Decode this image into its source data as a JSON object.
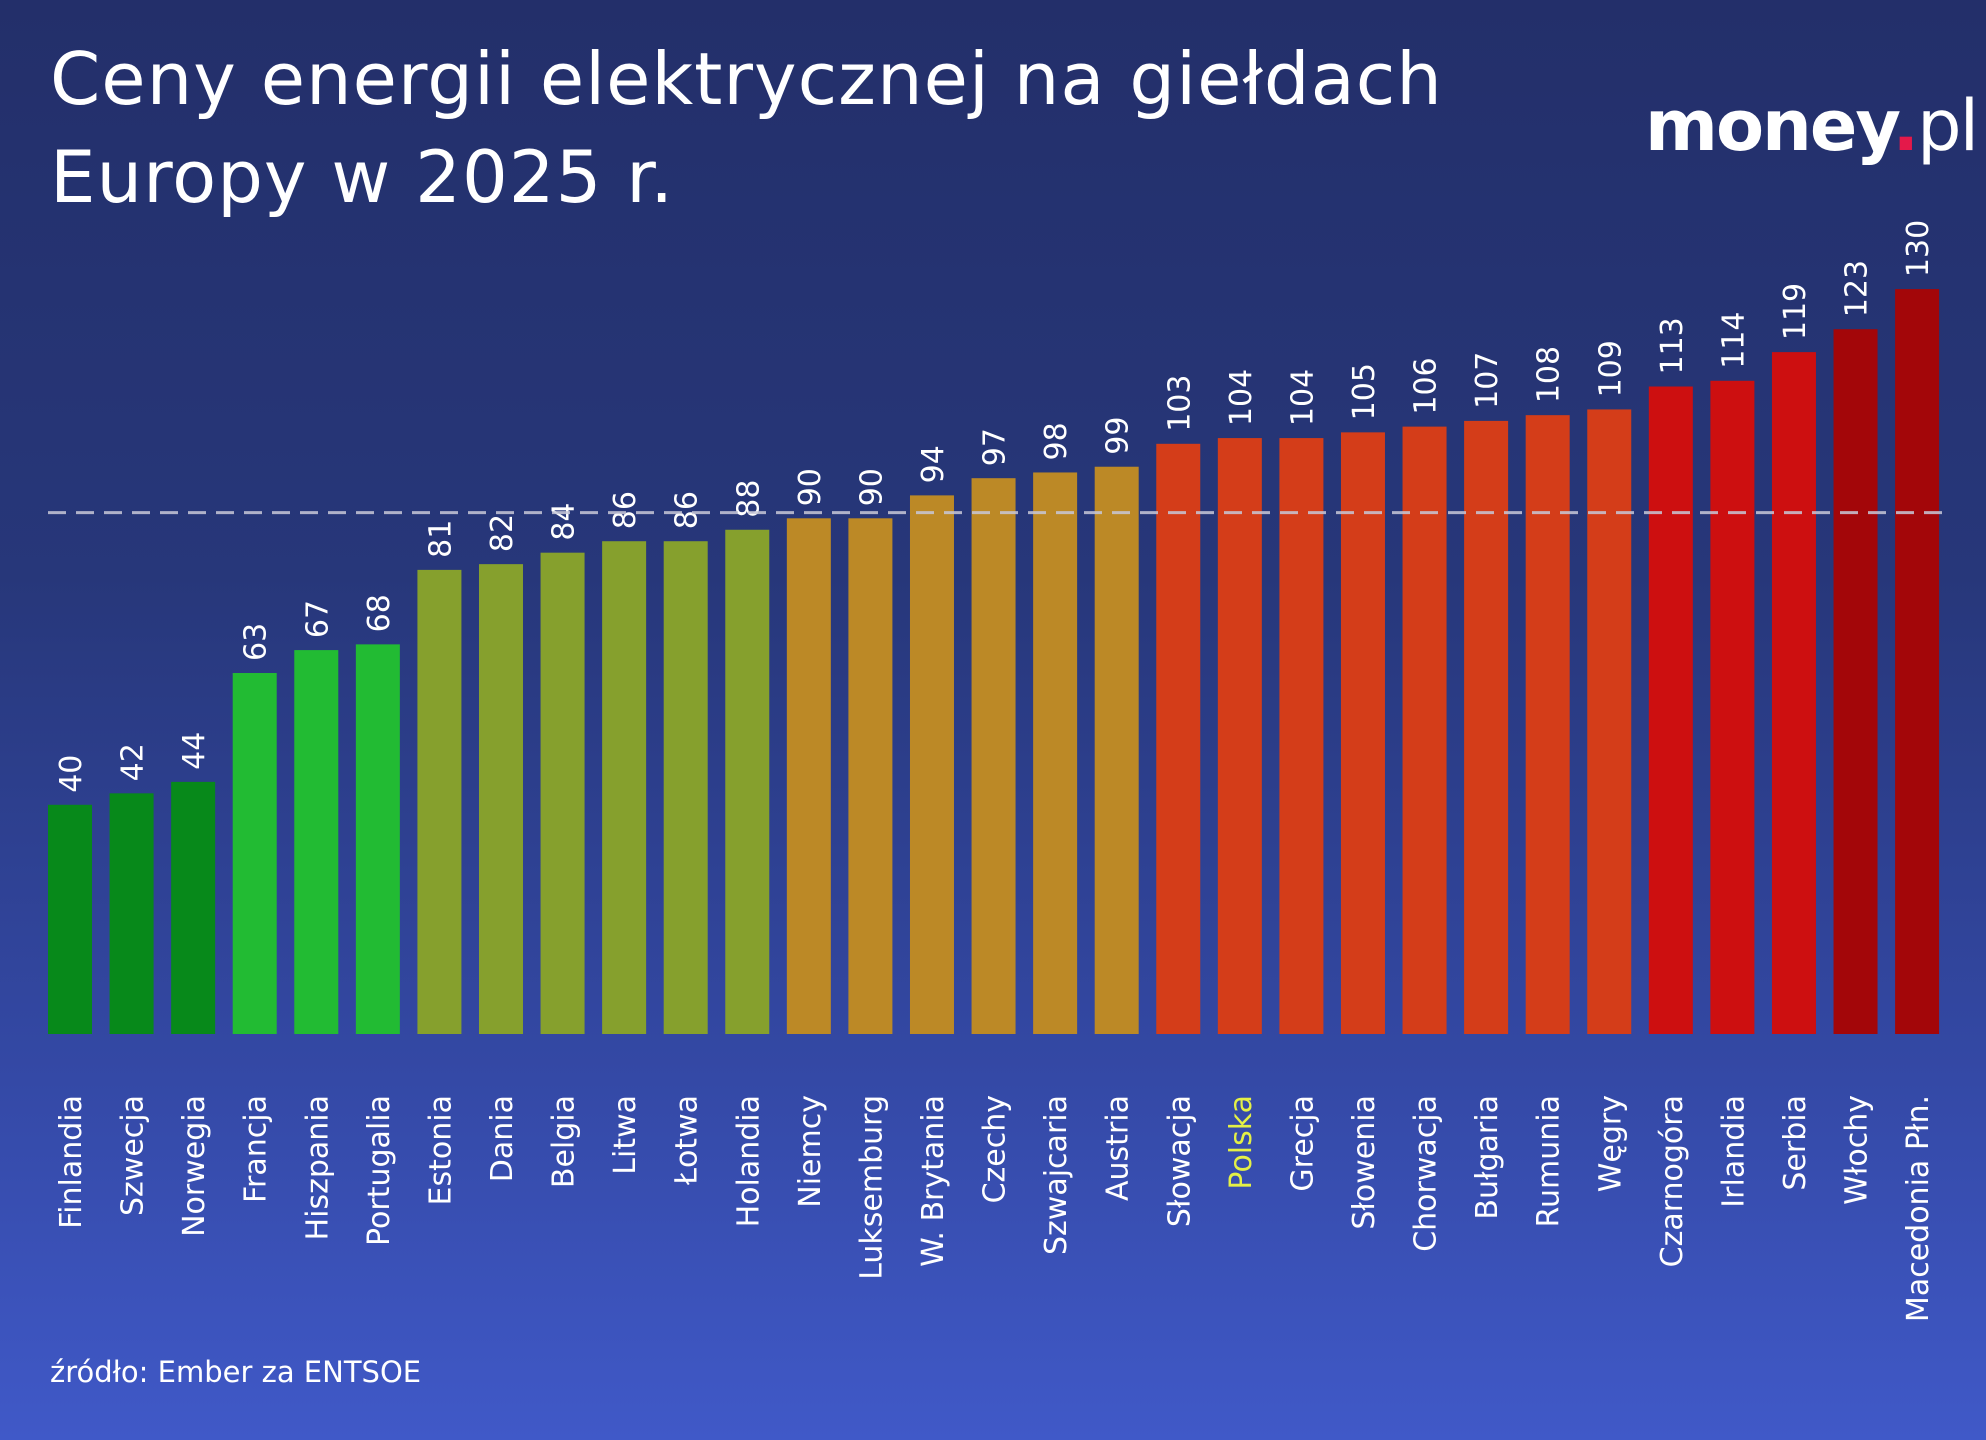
{
  "title": "Ceny energii elektrycznej na giełdach Europy w 2025 r.",
  "logo": {
    "text": "money",
    "suffix": ".pl",
    "dot_color": "#e4194a"
  },
  "source": "źródło: Ember za ENTSOE",
  "chart_data": {
    "type": "bar",
    "title": "Ceny energii elektrycznej na giełdach Europy w 2025 r.",
    "categories": [
      "Finlandia",
      "Szwecja",
      "Norwegia",
      "Francja",
      "Hiszpania",
      "Portugalia",
      "Estonia",
      "Dania",
      "Belgia",
      "Litwa",
      "Łotwa",
      "Holandia",
      "Niemcy",
      "Luksemburg",
      "W. Brytania",
      "Czechy",
      "Szwajcaria",
      "Austria",
      "Słowacja",
      "Polska",
      "Grecja",
      "Słowenia",
      "Chorwacja",
      "Bułgaria",
      "Rumunia",
      "Węgry",
      "Czarnogóra",
      "Irlandia",
      "Serbia",
      "Włochy",
      "Macedonia Płn."
    ],
    "values": [
      40,
      42,
      44,
      63,
      67,
      68,
      81,
      82,
      84,
      86,
      86,
      88,
      90,
      90,
      94,
      97,
      98,
      99,
      103,
      104,
      104,
      105,
      106,
      107,
      108,
      109,
      113,
      114,
      119,
      123,
      130
    ],
    "colors": [
      "#07891a",
      "#07891a",
      "#07891a",
      "#22bb33",
      "#22bb33",
      "#22bb33",
      "#86a02d",
      "#86a02d",
      "#86a02d",
      "#86a02d",
      "#86a02d",
      "#86a02d",
      "#bc8926",
      "#bc8926",
      "#bc8926",
      "#bc8926",
      "#bc8926",
      "#bc8926",
      "#d43d19",
      "#d43d19",
      "#d43d19",
      "#d43d19",
      "#d43d19",
      "#d43d19",
      "#d43d19",
      "#d43d19",
      "#cd0f10",
      "#cd0f10",
      "#cd0f10",
      "#a30609",
      "#a30609"
    ],
    "highlight": {
      "category": "Polska",
      "color": "#e4f046"
    },
    "reference_line": {
      "value": 91,
      "style": "dashed",
      "color": "#c8c8d8"
    },
    "ylim": [
      0,
      130
    ],
    "grid": false,
    "xlabel": "",
    "ylabel": ""
  }
}
